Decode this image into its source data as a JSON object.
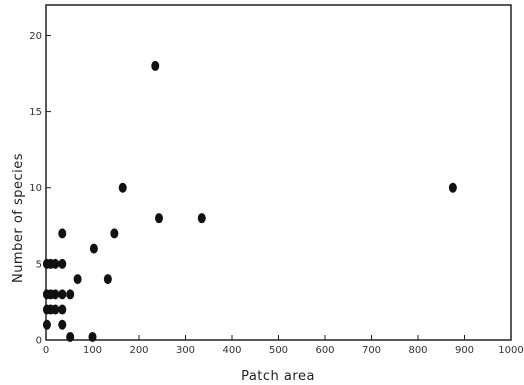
{
  "chart_data": {
    "type": "scatter",
    "xlabel": "Patch area",
    "ylabel": "Number of species",
    "xlim": [
      0,
      1000
    ],
    "ylim": [
      0,
      22
    ],
    "x_ticks": [
      0,
      100,
      200,
      300,
      400,
      500,
      600,
      700,
      800,
      900,
      1000
    ],
    "y_ticks": [
      0,
      5,
      10,
      15,
      20
    ],
    "grid": false,
    "marker_color": "#111111",
    "points": [
      {
        "x": 2,
        "y": 1
      },
      {
        "x": 2,
        "y": 2
      },
      {
        "x": 2,
        "y": 3
      },
      {
        "x": 2,
        "y": 5
      },
      {
        "x": 10,
        "y": 2
      },
      {
        "x": 10,
        "y": 3
      },
      {
        "x": 10,
        "y": 5
      },
      {
        "x": 20,
        "y": 2
      },
      {
        "x": 20,
        "y": 3
      },
      {
        "x": 20,
        "y": 5
      },
      {
        "x": 35,
        "y": 1
      },
      {
        "x": 35,
        "y": 2
      },
      {
        "x": 35,
        "y": 3
      },
      {
        "x": 35,
        "y": 5
      },
      {
        "x": 35,
        "y": 7
      },
      {
        "x": 52,
        "y": 0.2
      },
      {
        "x": 52,
        "y": 3
      },
      {
        "x": 68,
        "y": 4
      },
      {
        "x": 100,
        "y": 0.2
      },
      {
        "x": 103,
        "y": 6
      },
      {
        "x": 133,
        "y": 4
      },
      {
        "x": 147,
        "y": 7
      },
      {
        "x": 165,
        "y": 10
      },
      {
        "x": 235,
        "y": 18
      },
      {
        "x": 243,
        "y": 8
      },
      {
        "x": 335,
        "y": 8
      },
      {
        "x": 875,
        "y": 10
      }
    ]
  }
}
